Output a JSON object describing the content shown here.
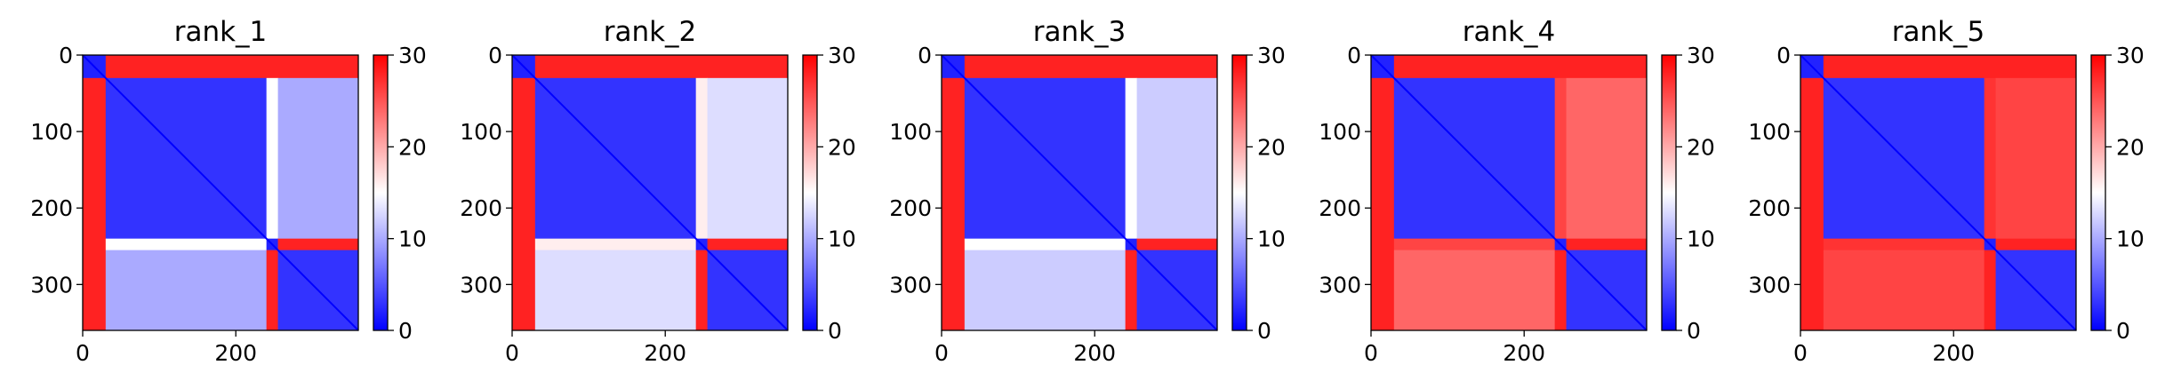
{
  "chart_data": [
    {
      "type": "heatmap",
      "title": "rank_1",
      "n": 360,
      "xticks": [
        0,
        200
      ],
      "yticks": [
        0,
        100,
        200,
        300
      ],
      "colorbar": {
        "ticks": [
          0,
          10,
          20,
          30
        ],
        "range": [
          0,
          30
        ],
        "colors": [
          "#0000ff",
          "#ffffff",
          "#ff0000"
        ]
      },
      "blocks": [
        {
          "start": 0,
          "end": 30
        },
        {
          "start": 30,
          "end": 240
        },
        {
          "start": 240,
          "end": 255
        },
        {
          "start": 255,
          "end": 360
        }
      ],
      "block_values": [
        [
          2,
          28,
          28,
          28
        ],
        [
          28,
          3,
          15,
          10
        ],
        [
          28,
          15,
          2,
          28
        ],
        [
          28,
          10,
          28,
          3
        ]
      ]
    },
    {
      "type": "heatmap",
      "title": "rank_2",
      "n": 360,
      "xticks": [
        0,
        200
      ],
      "yticks": [
        0,
        100,
        200,
        300
      ],
      "colorbar": {
        "ticks": [
          0,
          10,
          20,
          30
        ],
        "range": [
          0,
          30
        ],
        "colors": [
          "#0000ff",
          "#ffffff",
          "#ff0000"
        ]
      },
      "blocks": [
        {
          "start": 0,
          "end": 30
        },
        {
          "start": 30,
          "end": 240
        },
        {
          "start": 240,
          "end": 255
        },
        {
          "start": 255,
          "end": 360
        }
      ],
      "block_values": [
        [
          2,
          28,
          28,
          28
        ],
        [
          28,
          3,
          16,
          13
        ],
        [
          28,
          16,
          2,
          28
        ],
        [
          28,
          13,
          28,
          3
        ]
      ]
    },
    {
      "type": "heatmap",
      "title": "rank_3",
      "n": 360,
      "xticks": [
        0,
        200
      ],
      "yticks": [
        0,
        100,
        200,
        300
      ],
      "colorbar": {
        "ticks": [
          0,
          10,
          20,
          30
        ],
        "range": [
          0,
          30
        ],
        "colors": [
          "#0000ff",
          "#ffffff",
          "#ff0000"
        ]
      },
      "blocks": [
        {
          "start": 0,
          "end": 30
        },
        {
          "start": 30,
          "end": 240
        },
        {
          "start": 240,
          "end": 255
        },
        {
          "start": 255,
          "end": 360
        }
      ],
      "block_values": [
        [
          2,
          28,
          28,
          28
        ],
        [
          28,
          3,
          15,
          12
        ],
        [
          28,
          15,
          2,
          28
        ],
        [
          28,
          12,
          28,
          3
        ]
      ]
    },
    {
      "type": "heatmap",
      "title": "rank_4",
      "n": 360,
      "xticks": [
        0,
        200
      ],
      "yticks": [
        0,
        100,
        200,
        300
      ],
      "colorbar": {
        "ticks": [
          0,
          10,
          20,
          30
        ],
        "range": [
          0,
          30
        ],
        "colors": [
          "#0000ff",
          "#ffffff",
          "#ff0000"
        ]
      },
      "blocks": [
        {
          "start": 0,
          "end": 30
        },
        {
          "start": 30,
          "end": 240
        },
        {
          "start": 240,
          "end": 255
        },
        {
          "start": 255,
          "end": 360
        }
      ],
      "block_values": [
        [
          2,
          28,
          28,
          28
        ],
        [
          28,
          3,
          26,
          24
        ],
        [
          28,
          26,
          2,
          28
        ],
        [
          28,
          24,
          28,
          3
        ]
      ]
    },
    {
      "type": "heatmap",
      "title": "rank_5",
      "n": 360,
      "xticks": [
        0,
        200
      ],
      "yticks": [
        0,
        100,
        200,
        300
      ],
      "colorbar": {
        "ticks": [
          0,
          10,
          20,
          30
        ],
        "range": [
          0,
          30
        ],
        "colors": [
          "#0000ff",
          "#ffffff",
          "#ff0000"
        ]
      },
      "blocks": [
        {
          "start": 0,
          "end": 30
        },
        {
          "start": 30,
          "end": 240
        },
        {
          "start": 240,
          "end": 255
        },
        {
          "start": 255,
          "end": 360
        }
      ],
      "block_values": [
        [
          2,
          28,
          28,
          28
        ],
        [
          28,
          3,
          27,
          26
        ],
        [
          28,
          27,
          2,
          28
        ],
        [
          28,
          26,
          28,
          3
        ]
      ]
    }
  ]
}
